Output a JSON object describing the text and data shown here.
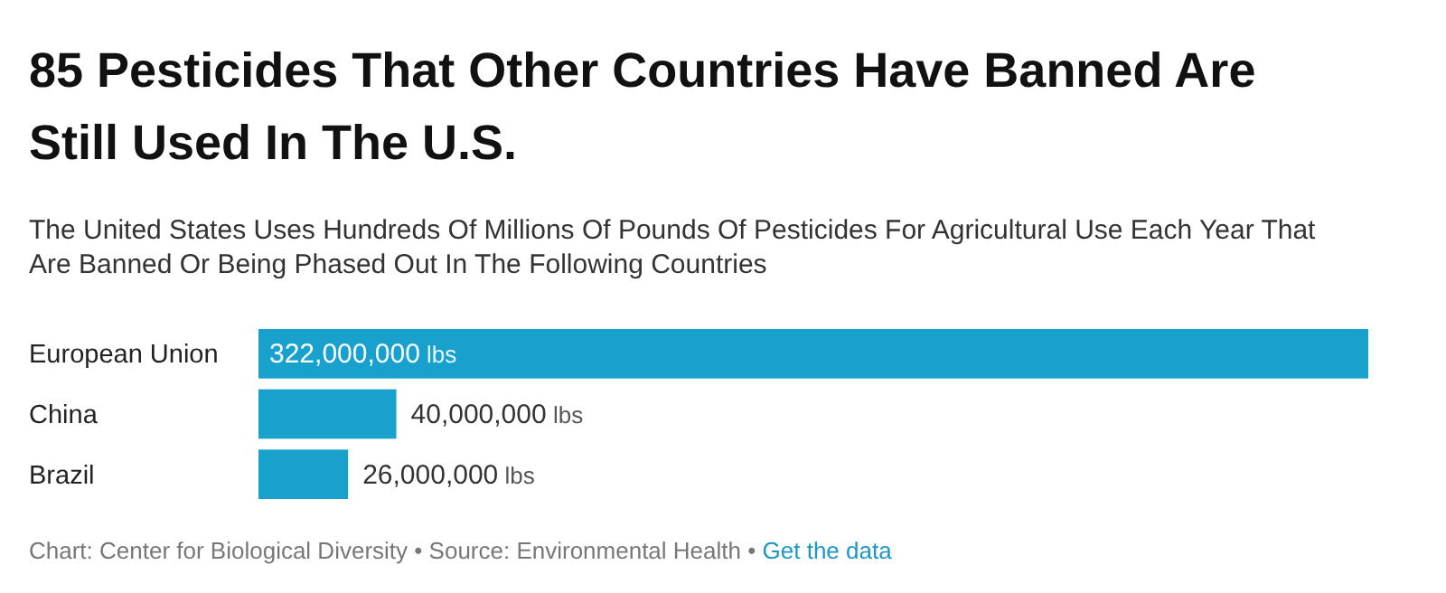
{
  "chart_data": {
    "type": "bar",
    "orientation": "horizontal",
    "title": "85 Pesticides That Other Countries Have Banned Are Still Used In The U.S.",
    "subtitle": "The United States Uses Hundreds Of Millions Of Pounds Of Pesticides For Agricultural Use Each Year That Are Banned Or Being Phased Out In The Following Countries",
    "categories": [
      "European Union",
      "China",
      "Brazil"
    ],
    "values": [
      322000000,
      40000000,
      26000000
    ],
    "value_labels": [
      "322,000,000 lbs",
      "40,000,000 lbs",
      "26,000,000 lbs"
    ],
    "color": "#18a1cd",
    "annotations": [
      "Chart: Center for Biological Diversity • Source: Environmental Health •",
      "Get the data"
    ]
  }
}
